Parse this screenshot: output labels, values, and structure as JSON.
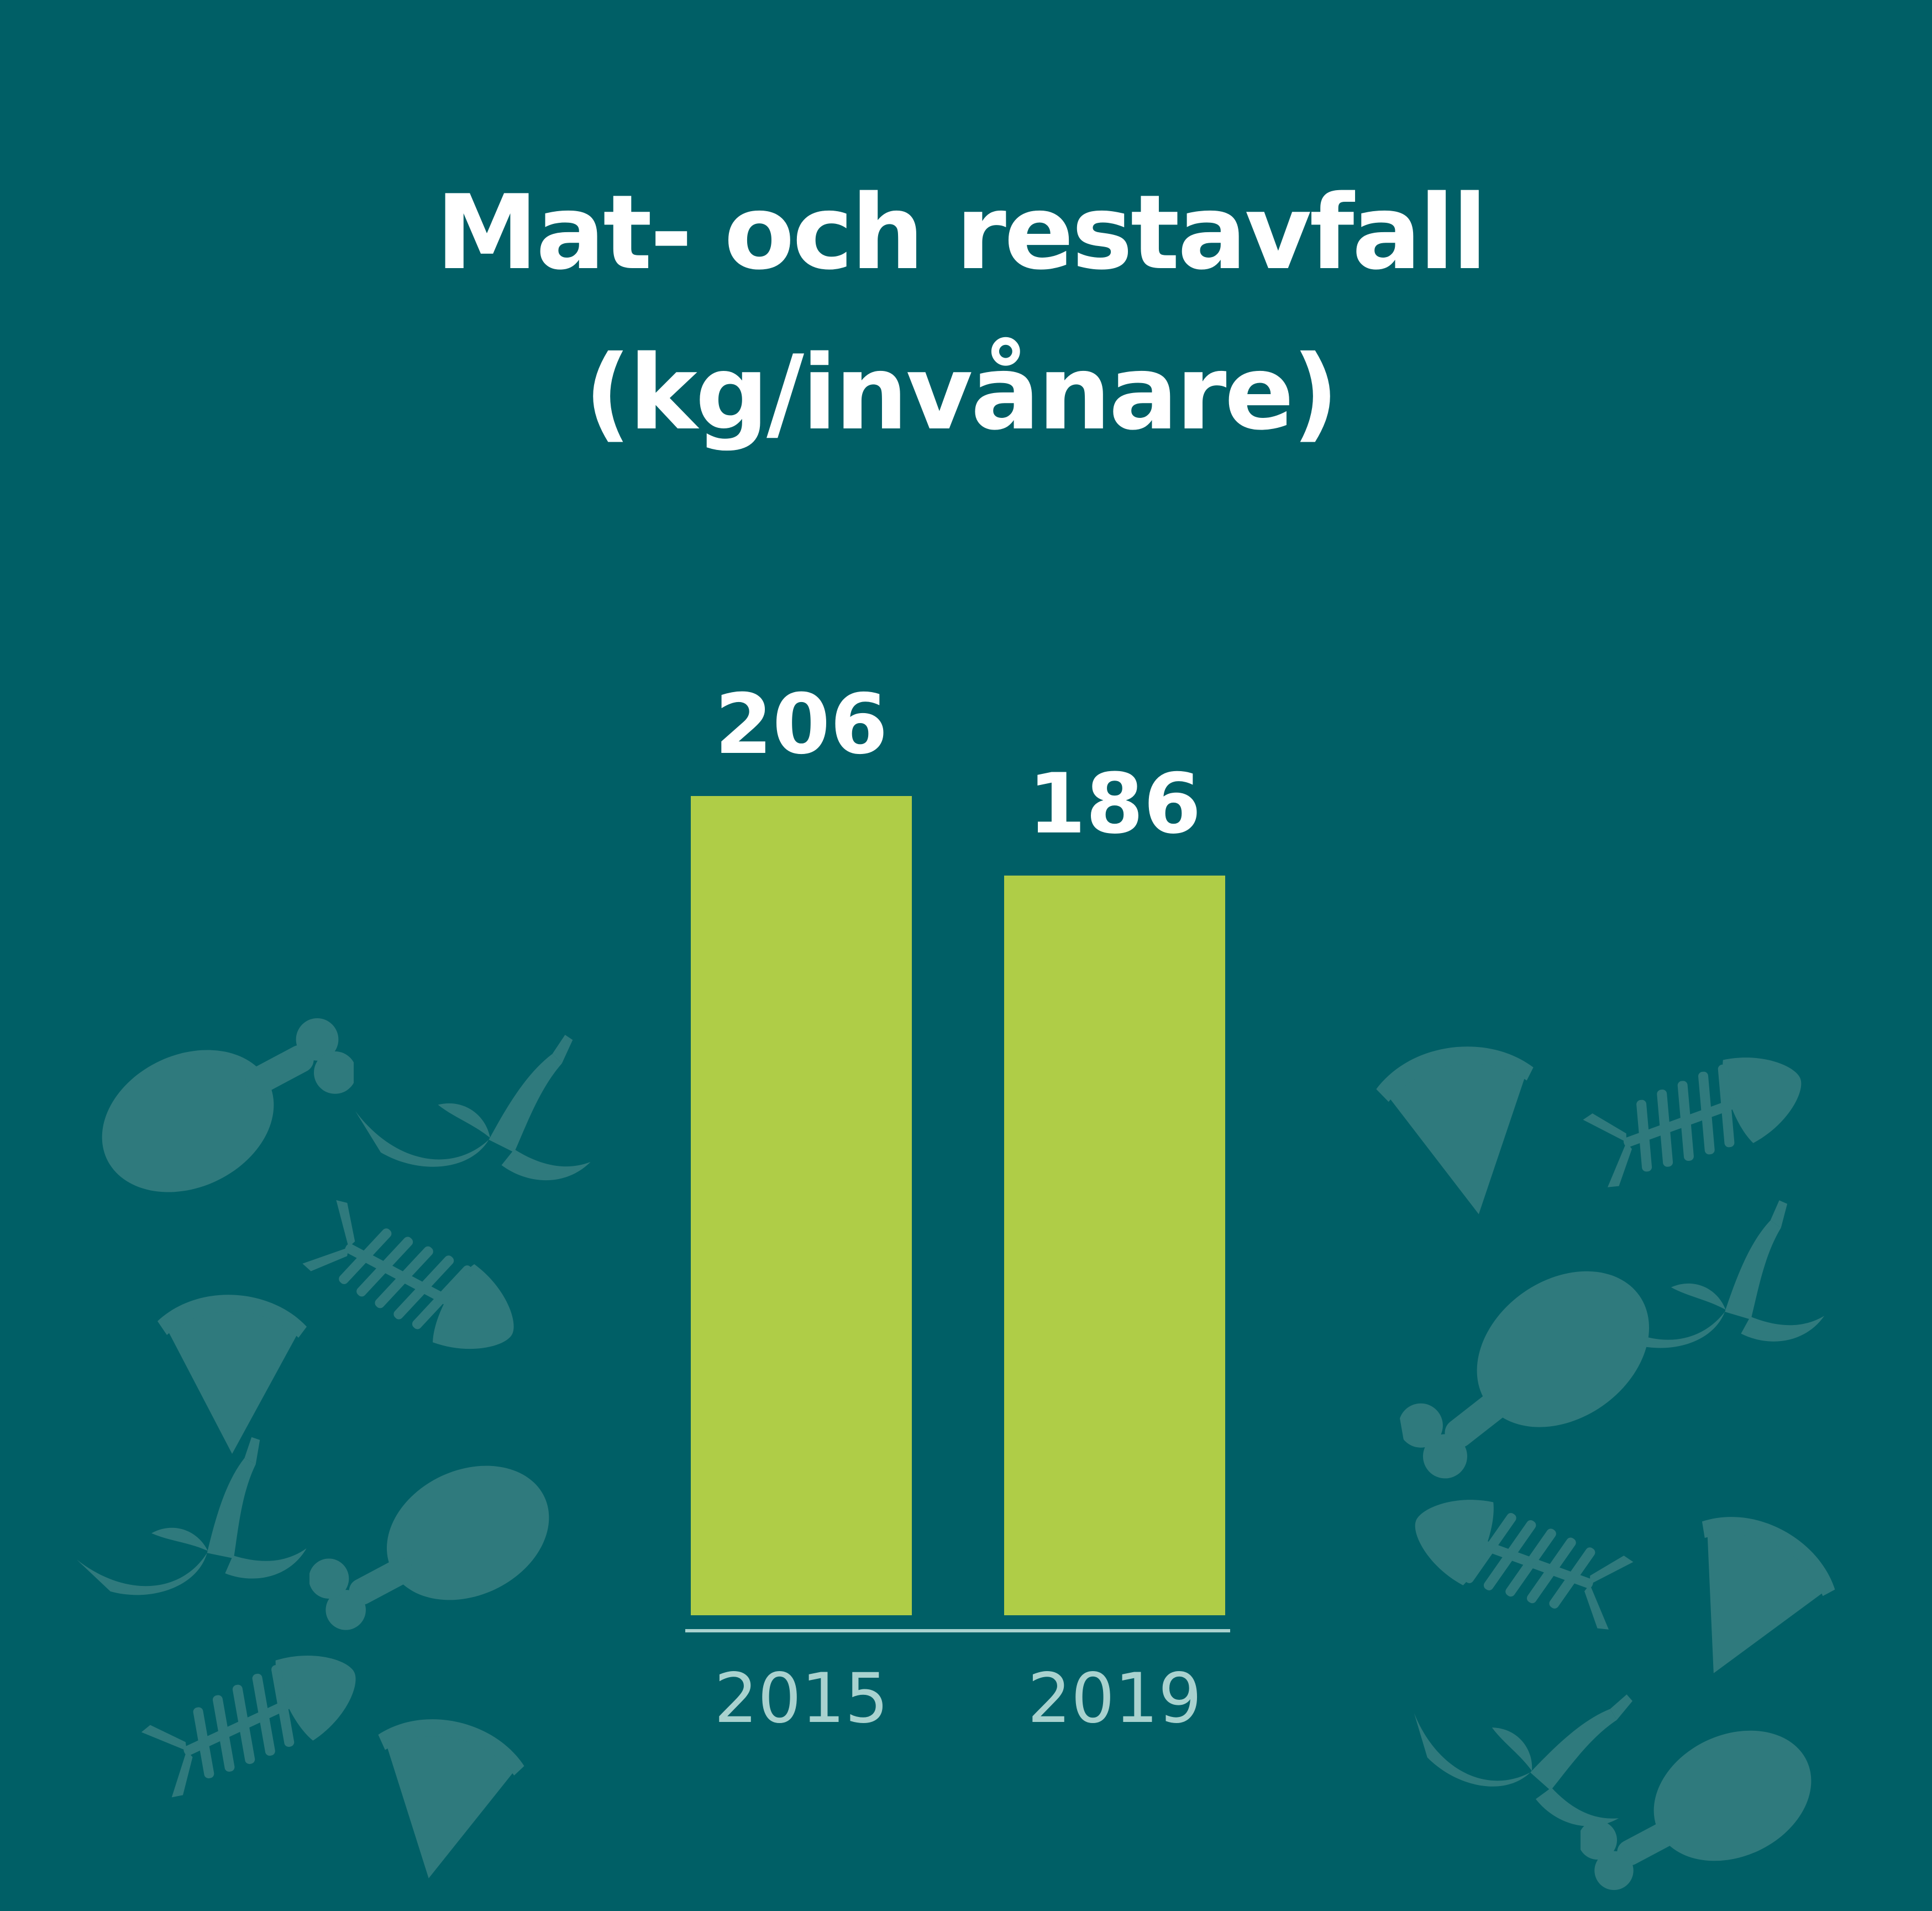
{
  "chart_data": {
    "type": "bar",
    "title": "Mat- och restavfall",
    "subtitle": "(kg/invånare)",
    "categories": [
      "2015",
      "2019"
    ],
    "values": [
      206,
      186
    ],
    "data_labels": [
      "206",
      "186"
    ],
    "ylim": [
      0,
      206
    ],
    "grid": false,
    "legend": "none",
    "colors": {
      "background": "#005f66",
      "bar": "#afcd47",
      "title": "#ffffff",
      "value_label": "#ffffff",
      "tick_label": "#a9d2cf",
      "baseline": "#a9d2cf",
      "decoration": "#2f7a7d"
    }
  },
  "decorations": {
    "left": [
      "chicken-leg-icon",
      "banana-peel-icon",
      "fish-bone-icon",
      "pizza-slice-icon"
    ],
    "right": [
      "pizza-slice-icon",
      "fish-bone-icon",
      "banana-peel-icon",
      "chicken-leg-icon"
    ]
  }
}
